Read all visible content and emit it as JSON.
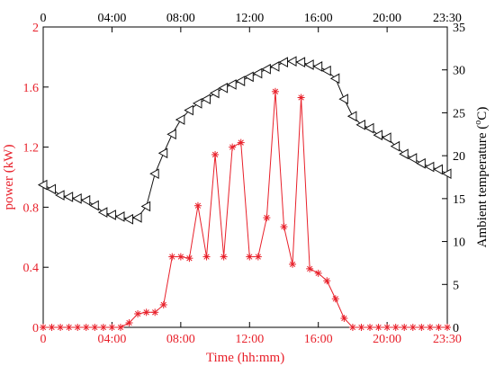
{
  "colors": {
    "power": "#e8202a",
    "temperature": "#111111",
    "axis": "#000000"
  },
  "chart_data": {
    "type": "line",
    "xlabel": "Time (hh:mm)",
    "ylabel_left": "power (kW)",
    "ylabel_right": "Ambient temperature (°C)",
    "ylabel_right_main": "Ambient temperature (",
    "ylabel_right_sup": "o",
    "ylabel_right_end": "C)",
    "xlim": [
      0,
      23.5
    ],
    "ylim_left": [
      0,
      2
    ],
    "ylim_right": [
      0,
      35
    ],
    "x_ticks": [
      {
        "value": 0,
        "label": "0"
      },
      {
        "value": 4,
        "label": "04:00"
      },
      {
        "value": 8,
        "label": "08:00"
      },
      {
        "value": 12,
        "label": "12:00"
      },
      {
        "value": 16,
        "label": "16:00"
      },
      {
        "value": 20,
        "label": "20:00"
      },
      {
        "value": 23.5,
        "label": "23:30"
      }
    ],
    "y_left_ticks": [
      {
        "value": 0,
        "label": "0"
      },
      {
        "value": 0.4,
        "label": "0.4"
      },
      {
        "value": 0.8,
        "label": "0.8"
      },
      {
        "value": 1.2,
        "label": "1.2"
      },
      {
        "value": 1.6,
        "label": "1.6"
      },
      {
        "value": 2,
        "label": "2"
      }
    ],
    "y_right_ticks": [
      {
        "value": 0,
        "label": "0"
      },
      {
        "value": 5,
        "label": "5"
      },
      {
        "value": 10,
        "label": "10"
      },
      {
        "value": 15,
        "label": "15"
      },
      {
        "value": 20,
        "label": "20"
      },
      {
        "value": 25,
        "label": "25"
      },
      {
        "value": 30,
        "label": "30"
      },
      {
        "value": 35,
        "label": "35"
      }
    ],
    "series": [
      {
        "axis": "left",
        "marker": "asterisk",
        "x": [
          0,
          0.5,
          1,
          1.5,
          2,
          2.5,
          3,
          3.5,
          4,
          4.5,
          5,
          5.5,
          6,
          6.5,
          7,
          7.5,
          8,
          8.5,
          9,
          9.5,
          10,
          10.5,
          11,
          11.5,
          12,
          12.5,
          13,
          13.5,
          14,
          14.5,
          15,
          15.5,
          16,
          16.5,
          17,
          17.5,
          18,
          18.5,
          19,
          19.5,
          20,
          20.5,
          21,
          21.5,
          22,
          22.5,
          23,
          23.5
        ],
        "values": [
          0,
          0,
          0,
          0,
          0,
          0,
          0,
          0,
          0,
          0,
          0.03,
          0.09,
          0.1,
          0.1,
          0.15,
          0.47,
          0.47,
          0.46,
          0.81,
          0.47,
          1.15,
          0.47,
          1.2,
          1.23,
          0.47,
          0.47,
          0.73,
          1.57,
          0.67,
          0.42,
          1.53,
          0.39,
          0.36,
          0.31,
          0.19,
          0.06,
          0,
          0,
          0,
          0,
          0,
          0,
          0,
          0,
          0,
          0,
          0,
          0
        ]
      },
      {
        "axis": "right",
        "marker": "triangle-left",
        "x": [
          0,
          0.5,
          1,
          1.5,
          2,
          2.5,
          3,
          3.5,
          4,
          4.5,
          5,
          5.5,
          6,
          6.5,
          7,
          7.5,
          8,
          8.5,
          9,
          9.5,
          10,
          10.5,
          11,
          11.5,
          12,
          12.5,
          13,
          13.5,
          14,
          14.5,
          15,
          15.5,
          16,
          16.5,
          17,
          17.5,
          18,
          18.5,
          19,
          19.5,
          20,
          20.5,
          21,
          21.5,
          22,
          22.5,
          23,
          23.5
        ],
        "values": [
          16.6,
          16.1,
          15.4,
          15.2,
          15.0,
          14.8,
          14.2,
          13.4,
          13.1,
          12.9,
          12.6,
          12.8,
          14.1,
          17.9,
          20.3,
          22.5,
          24.2,
          25.3,
          26.1,
          26.6,
          27.3,
          27.9,
          28.3,
          28.7,
          29.2,
          29.6,
          30.1,
          30.4,
          30.9,
          31.0,
          30.9,
          30.6,
          30.4,
          29.9,
          29.0,
          26.6,
          24.6,
          23.6,
          23.2,
          22.4,
          22.1,
          21.1,
          20.2,
          19.7,
          19.1,
          18.7,
          18.4,
          17.9
        ]
      }
    ]
  }
}
